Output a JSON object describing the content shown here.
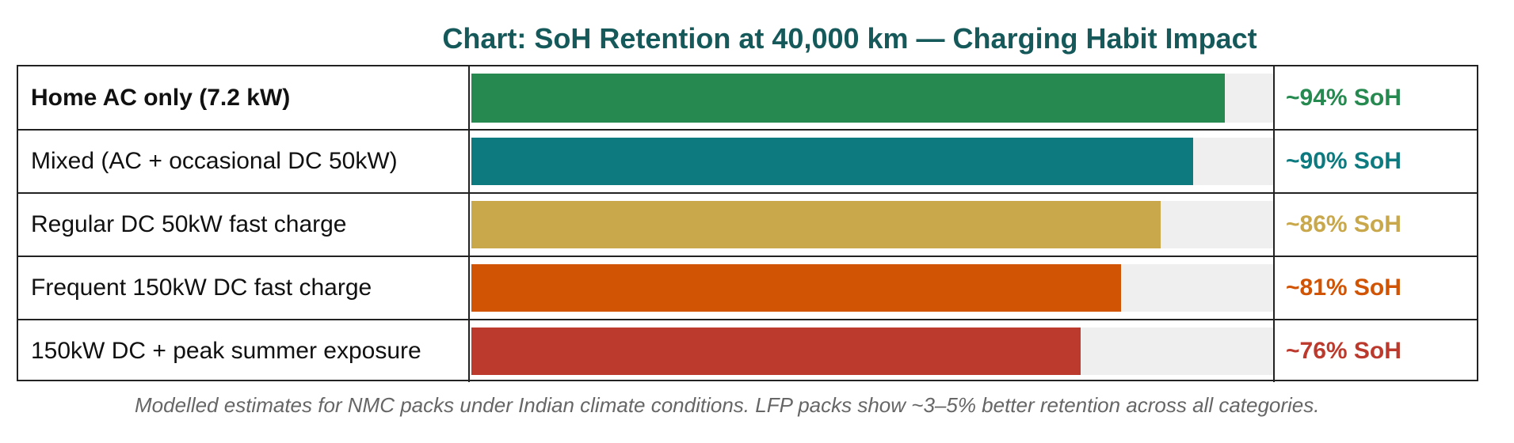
{
  "chart_data": {
    "type": "bar",
    "orientation": "horizontal",
    "title": "Chart: SoH Retention at 40,000 km — Charging Habit Impact",
    "categories": [
      "Home AC only (7.2 kW)",
      "Mixed (AC + occasional DC 50kW)",
      "Regular DC 50kW fast charge",
      "Frequent 150kW DC fast charge",
      "150kW DC + peak summer exposure"
    ],
    "values": [
      94,
      90,
      86,
      81,
      76
    ],
    "value_labels": [
      "~94% SoH",
      "~90% SoH",
      "~86% SoH",
      "~81% SoH",
      "~76% SoH"
    ],
    "colors": [
      "#26894f",
      "#0d7a80",
      "#c9a84c",
      "#d15404",
      "#bc3a2d"
    ],
    "bold_category_index": 0,
    "xlim": [
      0,
      100
    ],
    "grid": false,
    "footnote": "Modelled estimates for NMC packs under Indian climate conditions. LFP packs show ~3–5% better retention across all categories."
  }
}
